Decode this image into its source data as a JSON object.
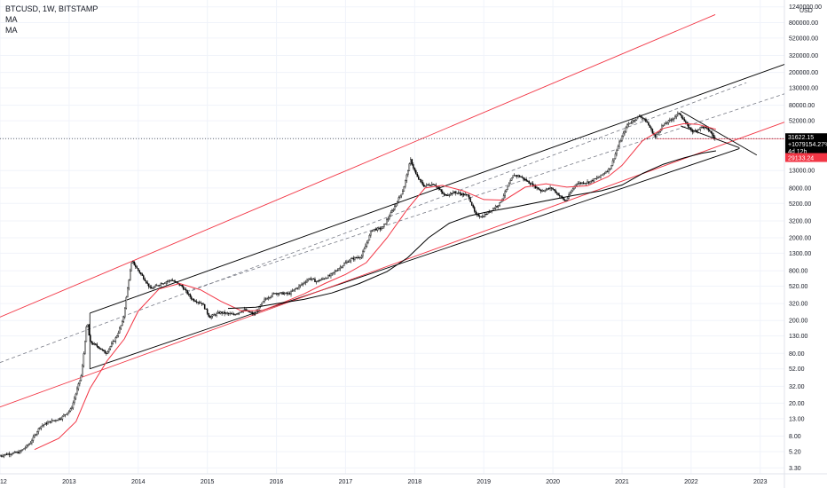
{
  "chart_data": {
    "type": "candlestick",
    "title": "BTCUSD, 1W, BITSTAMP",
    "indicators": [
      "MA",
      "MA"
    ],
    "y_scale": "log",
    "y_unit": "USD",
    "ylim": [
      2.8,
      1500000
    ],
    "x_years": [
      "2012",
      "2013",
      "2014",
      "2015",
      "2016",
      "2017",
      "2018",
      "2019",
      "2020",
      "2021",
      "2022",
      "2023"
    ],
    "x_range": [
      2012.0,
      2023.35
    ],
    "y_ticks": [
      "1240000.00",
      "800000.00",
      "520000.00",
      "320000.00",
      "200000.00",
      "130000.00",
      "80000.00",
      "52000.00",
      "32000.00",
      "13000.00",
      "8000.00",
      "5200.00",
      "3200.00",
      "2000.00",
      "1300.00",
      "800.00",
      "520.00",
      "320.00",
      "200.00",
      "130.00",
      "80.00",
      "52.00",
      "32.00",
      "20.00",
      "13.00",
      "8.00",
      "5.20",
      "3.30"
    ],
    "price_points": [
      [
        2012.0,
        4.6
      ],
      [
        2012.15,
        4.9
      ],
      [
        2012.3,
        5.1
      ],
      [
        2012.45,
        6.5
      ],
      [
        2012.6,
        10.5
      ],
      [
        2012.75,
        12.0
      ],
      [
        2012.9,
        13.2
      ],
      [
        2013.05,
        17
      ],
      [
        2013.2,
        45
      ],
      [
        2013.28,
        200
      ],
      [
        2013.32,
        110
      ],
      [
        2013.45,
        95
      ],
      [
        2013.55,
        80
      ],
      [
        2013.7,
        125
      ],
      [
        2013.8,
        200
      ],
      [
        2013.88,
        600
      ],
      [
        2013.93,
        1050
      ],
      [
        2014.0,
        850
      ],
      [
        2014.1,
        650
      ],
      [
        2014.2,
        480
      ],
      [
        2014.35,
        560
      ],
      [
        2014.5,
        620
      ],
      [
        2014.65,
        520
      ],
      [
        2014.8,
        360
      ],
      [
        2014.95,
        320
      ],
      [
        2015.05,
        220
      ],
      [
        2015.2,
        250
      ],
      [
        2015.4,
        235
      ],
      [
        2015.55,
        270
      ],
      [
        2015.7,
        235
      ],
      [
        2015.85,
        360
      ],
      [
        2016.0,
        430
      ],
      [
        2016.2,
        420
      ],
      [
        2016.4,
        560
      ],
      [
        2016.5,
        650
      ],
      [
        2016.6,
        590
      ],
      [
        2016.8,
        700
      ],
      [
        2017.0,
        970
      ],
      [
        2017.1,
        1100
      ],
      [
        2017.25,
        1200
      ],
      [
        2017.4,
        2500
      ],
      [
        2017.55,
        2600
      ],
      [
        2017.7,
        4300
      ],
      [
        2017.85,
        7500
      ],
      [
        2017.96,
        17500
      ],
      [
        2018.05,
        11000
      ],
      [
        2018.15,
        8500
      ],
      [
        2018.3,
        9000
      ],
      [
        2018.45,
        6500
      ],
      [
        2018.6,
        7100
      ],
      [
        2018.8,
        6400
      ],
      [
        2018.9,
        3800
      ],
      [
        2019.0,
        3600
      ],
      [
        2019.25,
        5200
      ],
      [
        2019.45,
        11500
      ],
      [
        2019.55,
        11000
      ],
      [
        2019.7,
        9000
      ],
      [
        2019.85,
        7400
      ],
      [
        2020.0,
        8000
      ],
      [
        2020.2,
        5500
      ],
      [
        2020.35,
        9000
      ],
      [
        2020.55,
        9500
      ],
      [
        2020.7,
        11000
      ],
      [
        2020.85,
        14000
      ],
      [
        2020.98,
        28000
      ],
      [
        2021.1,
        47000
      ],
      [
        2021.28,
        60000
      ],
      [
        2021.38,
        50000
      ],
      [
        2021.5,
        33000
      ],
      [
        2021.6,
        45000
      ],
      [
        2021.75,
        55000
      ],
      [
        2021.85,
        65000
      ],
      [
        2021.95,
        47000
      ],
      [
        2022.05,
        38000
      ],
      [
        2022.18,
        44000
      ],
      [
        2022.28,
        40000
      ],
      [
        2022.36,
        31622
      ]
    ],
    "ma_fast": [
      [
        2012.5,
        5.5
      ],
      [
        2012.85,
        7.5
      ],
      [
        2013.1,
        12
      ],
      [
        2013.3,
        30
      ],
      [
        2013.55,
        65
      ],
      [
        2013.8,
        120
      ],
      [
        2014.0,
        260
      ],
      [
        2014.3,
        480
      ],
      [
        2014.6,
        560
      ],
      [
        2014.9,
        470
      ],
      [
        2015.2,
        340
      ],
      [
        2015.5,
        260
      ],
      [
        2015.8,
        265
      ],
      [
        2016.1,
        330
      ],
      [
        2016.4,
        420
      ],
      [
        2016.7,
        560
      ],
      [
        2017.0,
        720
      ],
      [
        2017.3,
        1000
      ],
      [
        2017.6,
        2000
      ],
      [
        2017.9,
        4500
      ],
      [
        2018.15,
        8000
      ],
      [
        2018.4,
        8600
      ],
      [
        2018.7,
        7400
      ],
      [
        2019.0,
        5800
      ],
      [
        2019.3,
        5700
      ],
      [
        2019.6,
        8200
      ],
      [
        2019.9,
        9000
      ],
      [
        2020.2,
        8200
      ],
      [
        2020.5,
        8500
      ],
      [
        2020.8,
        11000
      ],
      [
        2021.0,
        15000
      ],
      [
        2021.3,
        30000
      ],
      [
        2021.6,
        42000
      ],
      [
        2021.9,
        48000
      ],
      [
        2022.1,
        47000
      ],
      [
        2022.36,
        41000
      ]
    ],
    "ma_slow": [
      [
        2015.3,
        280
      ],
      [
        2015.7,
        290
      ],
      [
        2016.0,
        320
      ],
      [
        2016.4,
        360
      ],
      [
        2016.8,
        430
      ],
      [
        2017.2,
        560
      ],
      [
        2017.6,
        780
      ],
      [
        2017.9,
        1150
      ],
      [
        2018.2,
        2000
      ],
      [
        2018.5,
        3000
      ],
      [
        2018.8,
        3700
      ],
      [
        2019.1,
        4200
      ],
      [
        2019.5,
        4800
      ],
      [
        2019.9,
        5600
      ],
      [
        2020.3,
        6500
      ],
      [
        2020.7,
        7400
      ],
      [
        2021.0,
        8700
      ],
      [
        2021.3,
        12000
      ],
      [
        2021.6,
        15500
      ],
      [
        2021.9,
        18500
      ],
      [
        2022.15,
        21000
      ],
      [
        2022.36,
        22500
      ]
    ],
    "trendlines": [
      {
        "color": "#f23645",
        "from": [
          2012.0,
          220
        ],
        "to": [
          2022.35,
          1000000
        ]
      },
      {
        "color": "#000000",
        "from": [
          2013.3,
          245
        ],
        "to": [
          2023.35,
          250000
        ]
      },
      {
        "color": "#000000",
        "from": [
          2013.3,
          52
        ],
        "to": [
          2022.7,
          24000
        ]
      },
      {
        "color": "#f23645",
        "from": [
          2012.0,
          18
        ],
        "to": [
          2023.35,
          50000
        ]
      },
      {
        "color": "#000000",
        "from": [
          2021.85,
          68000
        ],
        "to": [
          2022.95,
          20000
        ]
      },
      {
        "color": "#000000",
        "from": [
          2021.85,
          45000
        ],
        "to": [
          2022.7,
          24500
        ]
      }
    ],
    "dashed_lines": [
      {
        "color": "#787b86",
        "from": [
          2012.0,
          62
        ],
        "to": [
          2022.8,
          150000
        ]
      },
      {
        "color": "#787b86",
        "from": [
          2014.7,
          450
        ],
        "to": [
          2023.35,
          110000
        ]
      }
    ],
    "vertical_segment": {
      "x": 2013.3,
      "from": 52,
      "to": 245
    },
    "last_price": 31622.15,
    "last_price_label": "31622.15",
    "last_change_label": "+1079154.27%",
    "countdown_label": "4d 12h",
    "ma_price": 29133.24,
    "ma_price_label": "29133.24"
  },
  "colors": {
    "background": "#ffffff",
    "grid": "#f0f3fa",
    "candle": "#000000",
    "ma_fast": "#f23645",
    "ma_slow": "#000000",
    "price_tag": "#000000",
    "ma_tag": "#f23645",
    "text": "#131722"
  }
}
